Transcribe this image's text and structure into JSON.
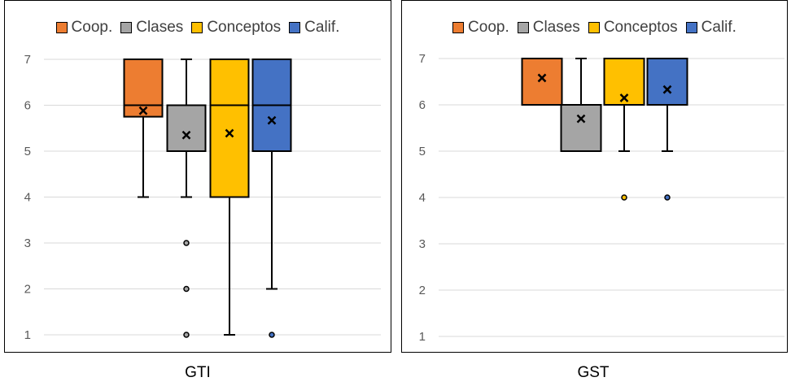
{
  "colors": {
    "Coop.": "#ED7D31",
    "Clases": "#A5A5A5",
    "Conceptos": "#FFC000",
    "Calif.": "#4472C4"
  },
  "chart_data": [
    {
      "type": "box",
      "caption": "GTI",
      "ylim": [
        1,
        7
      ],
      "yticks": [
        "1",
        "2",
        "3",
        "4",
        "5",
        "6",
        "7"
      ],
      "grid": true,
      "legend": "top",
      "series": [
        {
          "name": "Coop.",
          "min": 4,
          "q1": 5.75,
          "median": 6,
          "q3": 7,
          "max": 7,
          "mean": 5.88,
          "outliers": []
        },
        {
          "name": "Clases",
          "min": 4,
          "q1": 5,
          "median": 6,
          "q3": 6,
          "max": 7,
          "mean": 5.35,
          "outliers": [
            3,
            2,
            1
          ]
        },
        {
          "name": "Conceptos",
          "min": 1,
          "q1": 4,
          "median": 6,
          "q3": 7,
          "max": 7,
          "mean": 5.39,
          "outliers": []
        },
        {
          "name": "Calif.",
          "min": 2,
          "q1": 5,
          "median": 6,
          "q3": 7,
          "max": 7,
          "mean": 5.67,
          "outliers": [
            1
          ]
        }
      ]
    },
    {
      "type": "box",
      "caption": "GST",
      "ylim": [
        1,
        7
      ],
      "yticks": [
        "1",
        "2",
        "3",
        "4",
        "5",
        "6",
        "7"
      ],
      "grid": true,
      "legend": "top",
      "series": [
        {
          "name": "Coop.",
          "min": 6,
          "q1": 6,
          "median": 6,
          "q3": 7,
          "max": 7,
          "mean": 6.58,
          "outliers": []
        },
        {
          "name": "Clases",
          "min": 5,
          "q1": 5,
          "median": 5,
          "q3": 6,
          "max": 7,
          "mean": 5.7,
          "outliers": []
        },
        {
          "name": "Conceptos",
          "min": 5,
          "q1": 6,
          "median": 6,
          "q3": 7,
          "max": 7,
          "mean": 6.15,
          "outliers": [
            4
          ]
        },
        {
          "name": "Calif.",
          "min": 5,
          "q1": 6,
          "median": 6,
          "q3": 7,
          "max": 7,
          "mean": 6.33,
          "outliers": [
            4
          ]
        }
      ]
    }
  ]
}
